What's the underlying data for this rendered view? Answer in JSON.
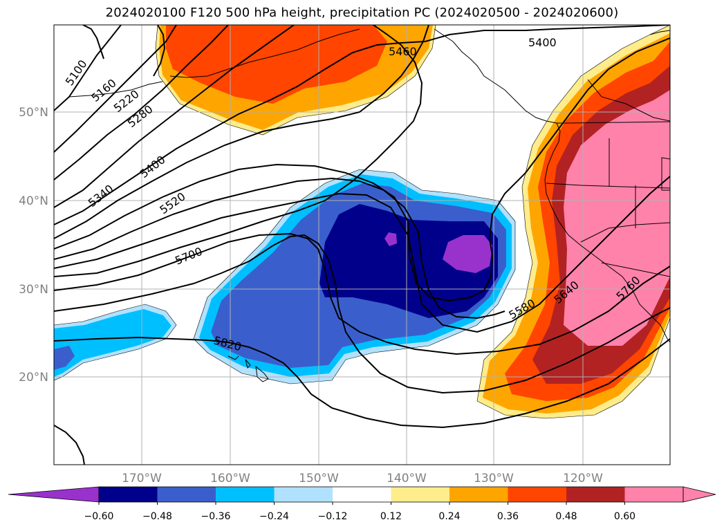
{
  "title": "2024020100 F120 500 hPa height, precipitation PC (2024020500 - 2024020600)",
  "map": {
    "lon_labels": [
      "170°W",
      "160°W",
      "150°W",
      "140°W",
      "130°W",
      "120°W"
    ],
    "lat_labels": [
      "50°N",
      "40°N",
      "30°N",
      "20°N"
    ],
    "contour_labels": [
      "5100",
      "5160",
      "5220",
      "5280",
      "5340",
      "5400",
      "5460",
      "5400",
      "5520",
      "5700",
      "5820",
      "5580",
      "5640",
      "5760"
    ]
  },
  "colorbar": {
    "colors": [
      "#9932cc",
      "#00008b",
      "#3a5fcd",
      "#00bfff",
      "#b0e2ff",
      "#ffffff",
      "#ffec8b",
      "#ffa500",
      "#ff4500",
      "#b22222",
      "#ff82ab",
      "#ff82ab"
    ],
    "tick_labels": [
      "−0.60",
      "−0.48",
      "−0.36",
      "−0.24",
      "−0.12",
      "0.12",
      "0.24",
      "0.36",
      "0.48",
      "0.60"
    ]
  }
}
